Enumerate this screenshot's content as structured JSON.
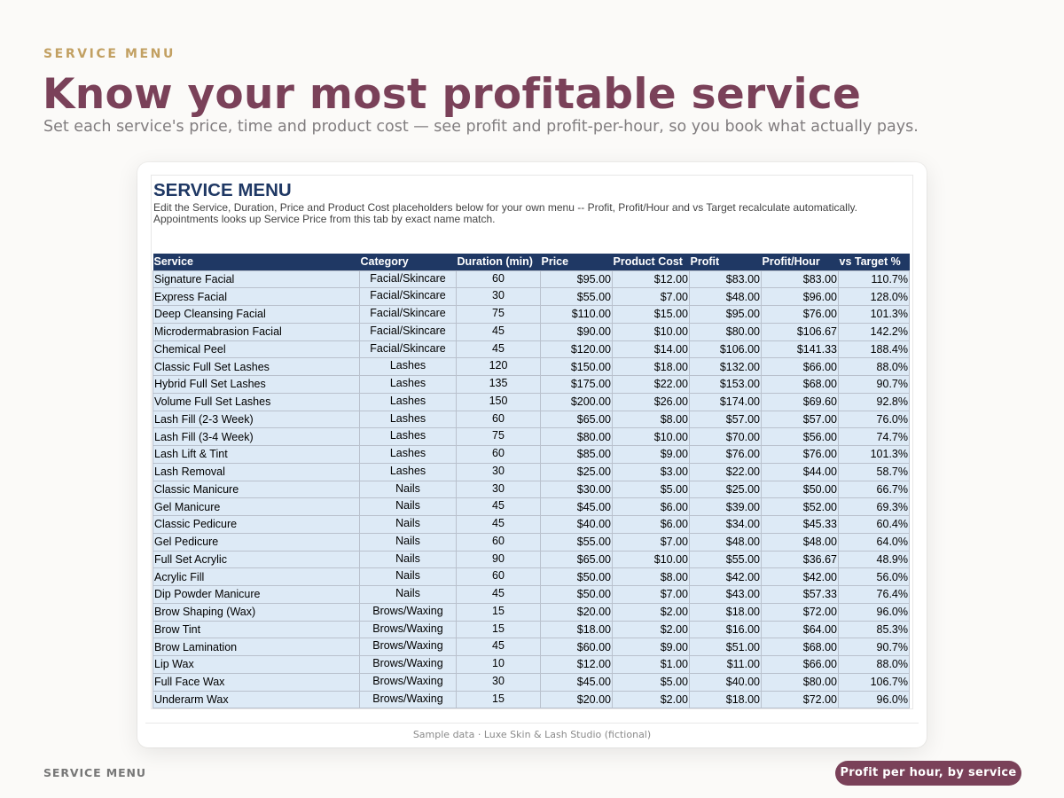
{
  "eyebrow": "SERVICE MENU",
  "headline": "Know your most profitable service",
  "subhead": "Set each service's price, time and product cost — see profit and profit-per-hour, so you book what actually pays.",
  "sheet": {
    "title": "SERVICE MENU",
    "note": "Edit the Service, Duration, Price and Product Cost placeholders below for your own menu -- Profit, Profit/Hour and vs Target recalculate automatically. Appointments looks up Service Price from this tab by exact name match.",
    "columns": [
      "Service",
      "Category",
      "Duration (min)",
      "Price",
      "Product Cost",
      "Profit",
      "Profit/Hour",
      "vs Target %"
    ],
    "rows": [
      [
        "Signature Facial",
        "Facial/Skincare",
        "60",
        "$95.00",
        "$12.00",
        "$83.00",
        "$83.00",
        "110.7%"
      ],
      [
        "Express Facial",
        "Facial/Skincare",
        "30",
        "$55.00",
        "$7.00",
        "$48.00",
        "$96.00",
        "128.0%"
      ],
      [
        "Deep Cleansing Facial",
        "Facial/Skincare",
        "75",
        "$110.00",
        "$15.00",
        "$95.00",
        "$76.00",
        "101.3%"
      ],
      [
        "Microdermabrasion Facial",
        "Facial/Skincare",
        "45",
        "$90.00",
        "$10.00",
        "$80.00",
        "$106.67",
        "142.2%"
      ],
      [
        "Chemical Peel",
        "Facial/Skincare",
        "45",
        "$120.00",
        "$14.00",
        "$106.00",
        "$141.33",
        "188.4%"
      ],
      [
        "Classic Full Set Lashes",
        "Lashes",
        "120",
        "$150.00",
        "$18.00",
        "$132.00",
        "$66.00",
        "88.0%"
      ],
      [
        "Hybrid Full Set Lashes",
        "Lashes",
        "135",
        "$175.00",
        "$22.00",
        "$153.00",
        "$68.00",
        "90.7%"
      ],
      [
        "Volume Full Set Lashes",
        "Lashes",
        "150",
        "$200.00",
        "$26.00",
        "$174.00",
        "$69.60",
        "92.8%"
      ],
      [
        "Lash Fill (2-3 Week)",
        "Lashes",
        "60",
        "$65.00",
        "$8.00",
        "$57.00",
        "$57.00",
        "76.0%"
      ],
      [
        "Lash Fill (3-4 Week)",
        "Lashes",
        "75",
        "$80.00",
        "$10.00",
        "$70.00",
        "$56.00",
        "74.7%"
      ],
      [
        "Lash Lift & Tint",
        "Lashes",
        "60",
        "$85.00",
        "$9.00",
        "$76.00",
        "$76.00",
        "101.3%"
      ],
      [
        "Lash Removal",
        "Lashes",
        "30",
        "$25.00",
        "$3.00",
        "$22.00",
        "$44.00",
        "58.7%"
      ],
      [
        "Classic Manicure",
        "Nails",
        "30",
        "$30.00",
        "$5.00",
        "$25.00",
        "$50.00",
        "66.7%"
      ],
      [
        "Gel Manicure",
        "Nails",
        "45",
        "$45.00",
        "$6.00",
        "$39.00",
        "$52.00",
        "69.3%"
      ],
      [
        "Classic Pedicure",
        "Nails",
        "45",
        "$40.00",
        "$6.00",
        "$34.00",
        "$45.33",
        "60.4%"
      ],
      [
        "Gel Pedicure",
        "Nails",
        "60",
        "$55.00",
        "$7.00",
        "$48.00",
        "$48.00",
        "64.0%"
      ],
      [
        "Full Set Acrylic",
        "Nails",
        "90",
        "$65.00",
        "$10.00",
        "$55.00",
        "$36.67",
        "48.9%"
      ],
      [
        "Acrylic Fill",
        "Nails",
        "60",
        "$50.00",
        "$8.00",
        "$42.00",
        "$42.00",
        "56.0%"
      ],
      [
        "Dip Powder Manicure",
        "Nails",
        "45",
        "$50.00",
        "$7.00",
        "$43.00",
        "$57.33",
        "76.4%"
      ],
      [
        "Brow Shaping (Wax)",
        "Brows/Waxing",
        "15",
        "$20.00",
        "$2.00",
        "$18.00",
        "$72.00",
        "96.0%"
      ],
      [
        "Brow Tint",
        "Brows/Waxing",
        "15",
        "$18.00",
        "$2.00",
        "$16.00",
        "$64.00",
        "85.3%"
      ],
      [
        "Brow Lamination",
        "Brows/Waxing",
        "45",
        "$60.00",
        "$9.00",
        "$51.00",
        "$68.00",
        "90.7%"
      ],
      [
        "Lip Wax",
        "Brows/Waxing",
        "10",
        "$12.00",
        "$1.00",
        "$11.00",
        "$66.00",
        "88.0%"
      ],
      [
        "Full Face Wax",
        "Brows/Waxing",
        "30",
        "$45.00",
        "$5.00",
        "$40.00",
        "$80.00",
        "106.7%"
      ],
      [
        "Underarm Wax",
        "Brows/Waxing",
        "15",
        "$20.00",
        "$2.00",
        "$18.00",
        "$72.00",
        "96.0%"
      ]
    ]
  },
  "caption": "Sample data · Luxe Skin & Lash Studio (fictional)",
  "footer": {
    "label": "SERVICE MENU",
    "pill": "Profit per hour, by service"
  },
  "colors": {
    "accent": "#7a4159",
    "eyebrow": "#c2a062",
    "header_fill": "#1f3864",
    "cell_fill": "#ddeaf6"
  }
}
